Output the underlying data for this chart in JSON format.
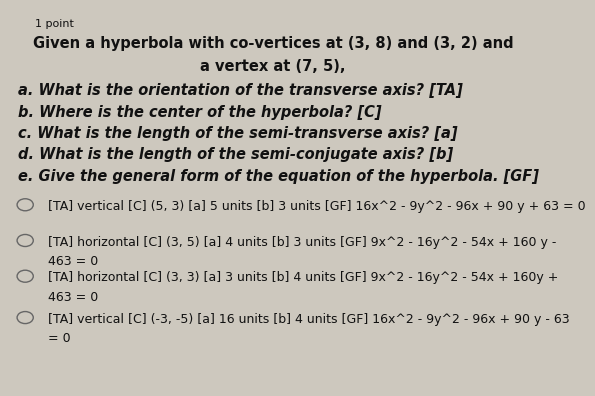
{
  "bg_color": "#cdc8be",
  "point_label": "1 point",
  "title_line1": "Given a hyperbola with co-vertices at (3, 8) and (3, 2) and",
  "title_line2": "a vertex at (7, 5),",
  "questions": [
    "a. What is the orientation of the transverse axis? [TA]",
    "b. Where is the center of the hyperbola? [C]",
    "c. What is the length of the semi-transverse axis? [a]",
    "d. What is the length of the semi-conjugate axis? [b]",
    "e. Give the general form of the equation of the hyperbola. [GF]"
  ],
  "options_line1": [
    "[TA] vertical [C] (5, 3) [a] 5 units [b] 3 units [GF] 16x^2 - 9y^2 - 96x + 90 y + 63 = 0",
    "[TA] horizontal [C] (3, 5) [a] 4 units [b] 3 units [GF] 9x^2 - 16y^2 - 54x + 160 y -",
    "[TA] horizontal [C] (3, 3) [a] 3 units [b] 4 units [GF] 9x^2 - 16y^2 - 54x + 160y +",
    "[TA] vertical [C] (-3, -5) [a] 16 units [b] 4 units [GF] 16x^2 - 9y^2 - 96x + 90 y - 63"
  ],
  "options_line2": [
    "",
    "463 = 0",
    "463 = 0",
    "= 0"
  ],
  "text_color": "#111111",
  "circle_color": "#666666",
  "font_size_point": 8,
  "font_size_title": 10.5,
  "font_size_question": 10.5,
  "font_size_option": 9.0
}
